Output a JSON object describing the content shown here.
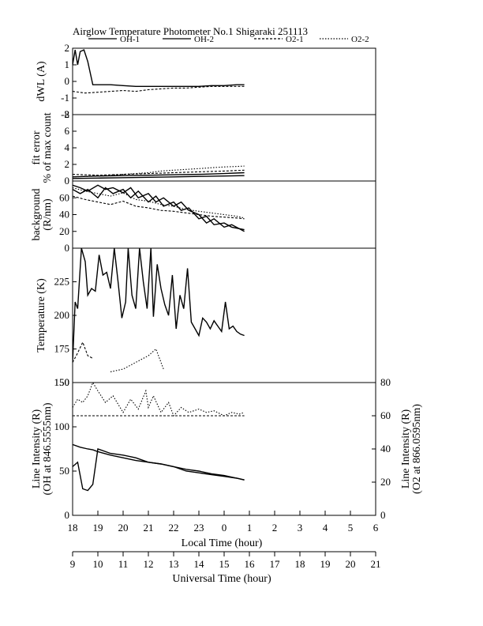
{
  "chart_data": {
    "type": "line",
    "title": "Airglow Temperature Photometer No.1  Shigaraki  251113",
    "legend": {
      "placement": "top",
      "entries": [
        "OH-1",
        "OH-2",
        "O2-1",
        "O2-2"
      ]
    },
    "x_axes": {
      "local": {
        "label": "Local Time (hour)",
        "ticks": [
          "18",
          "19",
          "20",
          "21",
          "22",
          "23",
          "0",
          "1",
          "2",
          "3",
          "4",
          "5",
          "6"
        ]
      },
      "universal": {
        "label": "Universal Time (hour)",
        "ticks": [
          "9",
          "10",
          "11",
          "12",
          "13",
          "14",
          "15",
          "16",
          "17",
          "18",
          "19",
          "20",
          "21"
        ],
        "range": [
          9,
          21
        ]
      }
    },
    "panels": [
      {
        "id": "dwl",
        "ylabel": "dWL (A)",
        "ylim": [
          -2,
          2
        ],
        "ticks": [
          "2",
          "1",
          "0",
          "-1",
          "-2"
        ],
        "tick_values": [
          2,
          1,
          0,
          -1,
          -2
        ],
        "series": [
          {
            "name": "OH-1",
            "style": "solid",
            "x": [
              9.0,
              9.1,
              9.2,
              9.3,
              9.45,
              9.6,
              9.8,
              10.0,
              10.5,
              11.0,
              11.5,
              12.0,
              12.5,
              13.0,
              13.5,
              14.0,
              14.5,
              15.0,
              15.5,
              15.8
            ],
            "y": [
              1.0,
              1.9,
              1.0,
              1.8,
              1.9,
              1.2,
              -0.2,
              -0.2,
              -0.2,
              -0.25,
              -0.3,
              -0.3,
              -0.3,
              -0.3,
              -0.3,
              -0.3,
              -0.25,
              -0.25,
              -0.2,
              -0.2
            ]
          },
          {
            "name": "O2-1",
            "style": "dashed",
            "x": [
              9.0,
              9.5,
              10.0,
              10.5,
              11.0,
              11.5,
              12.0,
              12.5,
              13.0,
              13.5,
              14.0,
              14.5,
              15.0,
              15.5,
              15.8
            ],
            "y": [
              -0.6,
              -0.7,
              -0.65,
              -0.6,
              -0.55,
              -0.6,
              -0.5,
              -0.45,
              -0.4,
              -0.4,
              -0.35,
              -0.3,
              -0.3,
              -0.3,
              -0.3
            ]
          }
        ]
      },
      {
        "id": "fit-error",
        "ylabel": "fit error",
        "ylabel2": "% of max count",
        "ylim": [
          0,
          8
        ],
        "ticks": [
          "8",
          "6",
          "4",
          "2",
          "0"
        ],
        "tick_values": [
          8,
          6,
          4,
          2,
          0
        ],
        "series": [
          {
            "name": "OH-1",
            "style": "solid",
            "x": [
              9.0,
              10.0,
              11.0,
              12.0,
              13.0,
              14.0,
              15.0,
              15.8
            ],
            "y": [
              0.3,
              0.35,
              0.4,
              0.45,
              0.5,
              0.55,
              0.6,
              0.65
            ]
          },
          {
            "name": "OH-2",
            "style": "solid",
            "x": [
              9.0,
              10.0,
              11.0,
              12.0,
              13.0,
              14.0,
              15.0,
              15.8
            ],
            "y": [
              0.5,
              0.6,
              0.65,
              0.7,
              0.75,
              0.8,
              0.9,
              1.0
            ]
          },
          {
            "name": "O2-1",
            "style": "dashed",
            "x": [
              9.0,
              10.0,
              11.0,
              12.0,
              13.0,
              14.0,
              15.0,
              15.8
            ],
            "y": [
              0.8,
              0.7,
              0.8,
              0.9,
              1.0,
              1.1,
              1.2,
              1.3
            ]
          },
          {
            "name": "O2-2",
            "style": "dotted",
            "x": [
              9.0,
              10.0,
              11.0,
              12.0,
              12.5,
              13.0,
              13.5,
              14.0,
              14.5,
              15.0,
              15.5,
              15.8
            ],
            "y": [
              0.5,
              0.6,
              0.8,
              1.0,
              1.2,
              1.3,
              1.4,
              1.5,
              1.6,
              1.7,
              1.75,
              1.8
            ]
          }
        ]
      },
      {
        "id": "background",
        "ylabel": "background",
        "ylabel2": "(R/nm)",
        "ylim": [
          0,
          80
        ],
        "ticks": [
          "60",
          "40",
          "20",
          "0"
        ],
        "tick_values": [
          60,
          40,
          20,
          0
        ],
        "series": [
          {
            "name": "OH-1",
            "style": "solid",
            "x": [
              9.0,
              9.3,
              9.6,
              10.0,
              10.3,
              10.6,
              11.0,
              11.3,
              11.6,
              12.0,
              12.3,
              12.6,
              13.0,
              13.3,
              13.6,
              14.0,
              14.3,
              14.6,
              15.0,
              15.3,
              15.8
            ],
            "y": [
              75,
              72,
              68,
              75,
              70,
              72,
              66,
              72,
              60,
              65,
              55,
              60,
              50,
              55,
              45,
              40,
              30,
              35,
              25,
              28,
              20
            ]
          },
          {
            "name": "OH-2",
            "style": "solid",
            "x": [
              9.0,
              9.3,
              9.6,
              10.0,
              10.3,
              10.6,
              11.0,
              11.3,
              11.6,
              12.0,
              12.3,
              12.6,
              13.0,
              13.3,
              13.6,
              14.0,
              14.3,
              14.6,
              15.0,
              15.3,
              15.8
            ],
            "y": [
              70,
              65,
              70,
              60,
              72,
              65,
              70,
              60,
              68,
              55,
              62,
              50,
              55,
              45,
              48,
              35,
              38,
              28,
              30,
              25,
              22
            ]
          },
          {
            "name": "O2-1",
            "style": "dashed",
            "x": [
              9.0,
              9.5,
              10.0,
              10.5,
              11.0,
              11.5,
              12.0,
              12.5,
              13.0,
              13.5,
              14.0,
              14.5,
              15.0,
              15.5,
              15.8
            ],
            "y": [
              62,
              58,
              55,
              52,
              56,
              50,
              48,
              45,
              44,
              42,
              40,
              38,
              37,
              36,
              35
            ]
          },
          {
            "name": "O2-2",
            "style": "dotted",
            "x": [
              9.0,
              9.5,
              10.0,
              10.5,
              11.0,
              11.5,
              12.0,
              12.5,
              13.0,
              13.5,
              14.0,
              14.5,
              15.0,
              15.5,
              15.8
            ],
            "y": [
              72,
              68,
              65,
              62,
              66,
              58,
              56,
              52,
              50,
              46,
              44,
              42,
              40,
              38,
              36
            ]
          }
        ]
      },
      {
        "id": "temperature",
        "ylabel": "Temperature (K)",
        "ylim": [
          150,
          250
        ],
        "ticks": [
          "225",
          "200",
          "175",
          "150"
        ],
        "tick_values": [
          225,
          200,
          175,
          150
        ],
        "series": [
          {
            "name": "OH-1",
            "style": "solid",
            "x": [
              9.0,
              9.1,
              9.2,
              9.35,
              9.5,
              9.6,
              9.75,
              9.9,
              10.05,
              10.2,
              10.35,
              10.5,
              10.65,
              10.8,
              10.95,
              11.1,
              11.2,
              11.35,
              11.5,
              11.65,
              11.8,
              11.95,
              12.1,
              12.2,
              12.35,
              12.5,
              12.65,
              12.8,
              12.95,
              13.1,
              13.25,
              13.4,
              13.55,
              13.7,
              13.85,
              14.0,
              14.15,
              14.3,
              14.45,
              14.6,
              14.75,
              14.9,
              15.05,
              15.2,
              15.35,
              15.5,
              15.65,
              15.8
            ],
            "y": [
              165,
              210,
              205,
              250,
              240,
              215,
              220,
              218,
              245,
              230,
              232,
              220,
              250,
              225,
              198,
              210,
              250,
              215,
              205,
              250,
              225,
              205,
              250,
              199,
              238,
              220,
              208,
              200,
              230,
              190,
              215,
              205,
              235,
              195,
              190,
              185,
              198,
              195,
              190,
              196,
              192,
              188,
              210,
              190,
              192,
              188,
              186,
              185
            ]
          },
          {
            "name": "O2-1",
            "style": "dashed",
            "x": [
              9.0,
              9.2,
              9.4,
              9.6,
              9.8
            ],
            "y": [
              165,
              172,
              180,
              170,
              168
            ]
          },
          {
            "name": "O2-2",
            "style": "dotted",
            "x": [
              10.5,
              11.0,
              11.5,
              12.0,
              12.3,
              12.6
            ],
            "y": [
              158,
              160,
              165,
              170,
              175,
              160
            ]
          }
        ]
      },
      {
        "id": "intensity",
        "ylabel": "Line Intensity (R)",
        "ylabel2": "(OH at 846.5555nm)",
        "ylim": [
          0,
          150
        ],
        "ticks": [
          "150",
          "100",
          "50",
          "0"
        ],
        "tick_values": [
          150,
          100,
          50,
          0
        ],
        "right_axis": {
          "ylabel": "Line Intensity (R)",
          "ylabel2": "(O2 at 866.0595nm)",
          "ylim": [
            0,
            80
          ],
          "ticks": [
            "80",
            "60",
            "40",
            "20",
            "0"
          ],
          "tick_values": [
            80,
            60,
            40,
            20,
            0
          ]
        },
        "series": [
          {
            "name": "OH-1",
            "style": "solid",
            "axis": "left",
            "x": [
              9.0,
              9.3,
              9.6,
              9.8,
              10.0,
              10.5,
              11.0,
              11.5,
              12.0,
              12.5,
              13.0,
              13.5,
              14.0,
              14.5,
              15.0,
              15.5,
              15.8
            ],
            "y": [
              80,
              77,
              75,
              74,
              72,
              68,
              65,
              62,
              60,
              58,
              55,
              52,
              50,
              47,
              45,
              42,
              40
            ]
          },
          {
            "name": "OH-2",
            "style": "solid",
            "axis": "left",
            "x": [
              9.0,
              9.2,
              9.4,
              9.6,
              9.8,
              10.0,
              10.5,
              11.0,
              11.5,
              12.0,
              12.5,
              13.0,
              13.5,
              14.0,
              14.5,
              15.0,
              15.5,
              15.8
            ],
            "y": [
              55,
              60,
              30,
              28,
              35,
              75,
              70,
              68,
              65,
              60,
              58,
              55,
              50,
              48,
              46,
              44,
              42,
              40
            ]
          },
          {
            "name": "O2-1",
            "style": "dashed",
            "axis": "right",
            "x": [
              9.0,
              9.3,
              9.6,
              10.0,
              10.5,
              11.0,
              11.5,
              12.0,
              12.5,
              13.0,
              13.5,
              14.0,
              14.5,
              15.0,
              15.5,
              15.8
            ],
            "y": [
              60,
              60,
              60,
              60,
              60,
              60,
              60,
              60,
              60,
              60,
              60,
              60,
              60,
              60,
              60,
              60
            ]
          },
          {
            "name": "O2-2",
            "style": "dotted",
            "axis": "right",
            "x": [
              9.0,
              9.2,
              9.4,
              9.6,
              9.8,
              10.0,
              10.3,
              10.6,
              11.0,
              11.3,
              11.6,
              11.9,
              12.0,
              12.2,
              12.5,
              12.8,
              13.0,
              13.3,
              13.6,
              14.0,
              14.3,
              14.6,
              15.0,
              15.3,
              15.6,
              15.8
            ],
            "y": [
              65,
              70,
              68,
              72,
              80,
              75,
              68,
              72,
              62,
              70,
              64,
              75,
              65,
              72,
              62,
              68,
              60,
              65,
              62,
              64,
              62,
              63,
              60,
              62,
              61,
              62
            ]
          }
        ]
      }
    ],
    "grid": false
  }
}
